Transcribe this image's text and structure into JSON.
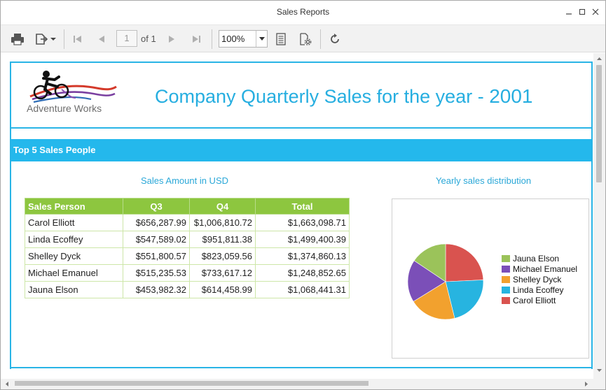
{
  "window": {
    "title": "Sales Reports"
  },
  "toolbar": {
    "page_current": "1",
    "page_of": "of 1",
    "zoom": "100%"
  },
  "report": {
    "logo_text": "Adventure Works",
    "title": "Company Quarterly Sales for the year - ",
    "year": "2001",
    "section_title": "Top 5 Sales People",
    "table_caption": "Sales Amount in USD",
    "chart_caption": "Yearly sales distribution",
    "table": {
      "headers": [
        "Sales Person",
        "Q3",
        "Q4",
        "Total"
      ],
      "rows": [
        [
          "Carol Elliott",
          "$656,287.99",
          "$1,006,810.72",
          "$1,663,098.71"
        ],
        [
          "Linda Ecoffey",
          "$547,589.02",
          "$951,811.38",
          "$1,499,400.39"
        ],
        [
          "Shelley Dyck",
          "$551,800.57",
          "$823,059.56",
          "$1,374,860.13"
        ],
        [
          "Michael Emanuel",
          "$515,235.53",
          "$733,617.12",
          "$1,248,852.65"
        ],
        [
          "Jauna Elson",
          "$453,982.32",
          "$614,458.99",
          "$1,068,441.31"
        ]
      ]
    },
    "legend": [
      {
        "label": "Jauna Elson",
        "color": "#9bc35a"
      },
      {
        "label": "Michael Emanuel",
        "color": "#7b4fb8"
      },
      {
        "label": "Shelley Dyck",
        "color": "#f2a12e"
      },
      {
        "label": "Linda Ecoffey",
        "color": "#27b4e0"
      },
      {
        "label": "Carol Elliott",
        "color": "#d9534f"
      }
    ]
  },
  "chart_data": {
    "type": "pie",
    "categories": [
      "Carol Elliott",
      "Linda Ecoffey",
      "Shelley Dyck",
      "Michael Emanuel",
      "Jauna Elson"
    ],
    "values": [
      1663098.71,
      1499400.39,
      1374860.13,
      1248852.65,
      1068441.31
    ],
    "colors": [
      "#d9534f",
      "#27b4e0",
      "#f2a12e",
      "#7b4fb8",
      "#9bc35a"
    ],
    "title": "Yearly sales distribution",
    "legend_position": "right"
  }
}
